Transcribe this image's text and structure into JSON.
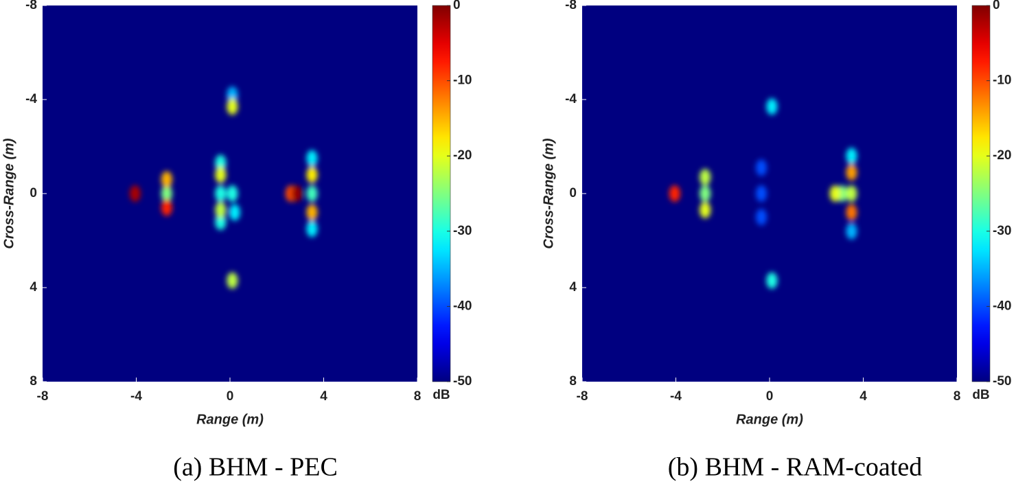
{
  "chart_data": [
    {
      "type": "heatmap",
      "caption": "(a) BHM - PEC",
      "xlabel": "Range (m)",
      "ylabel": "Cross-Range (m)",
      "xlim": [
        -8,
        8
      ],
      "xticks": [
        -8,
        -4,
        0,
        4,
        8
      ],
      "ylim": [
        8,
        -8
      ],
      "yticks": [
        -8,
        -4,
        0,
        4,
        8
      ],
      "clim": [
        -50,
        0
      ],
      "cticks": [
        0,
        -10,
        -20,
        -30,
        -40,
        -50
      ],
      "colorbar_label": "dB",
      "points": {
        "x": [
          -4.05,
          -2.7,
          -2.7,
          -2.7,
          -0.4,
          -0.4,
          -0.4,
          -0.4,
          -0.4,
          0.1,
          0.1,
          0.1,
          0.1,
          2.85,
          2.6,
          3.5,
          3.5,
          3.5,
          3.5,
          3.5,
          0.2
        ],
        "y": [
          0,
          -0.6,
          0.6,
          0,
          -0.8,
          0.7,
          0,
          -1.3,
          1.2,
          -3.7,
          3.7,
          0,
          -4.2,
          0,
          0,
          -0.8,
          0.8,
          0,
          -1.5,
          1.5,
          0.8
        ],
        "values": [
          -2,
          -15,
          -8,
          -25,
          -20,
          -22,
          -30,
          -30,
          -30,
          -20,
          -22,
          -30,
          -35,
          -1,
          -10,
          -18,
          -15,
          -28,
          -32,
          -32,
          -32
        ]
      }
    },
    {
      "type": "heatmap",
      "caption": "(b) BHM - RAM-coated",
      "xlabel": "Range (m)",
      "ylabel": "Cross-Range (m)",
      "xlim": [
        -8,
        8
      ],
      "xticks": [
        -8,
        -4,
        0,
        4,
        8
      ],
      "ylim": [
        8,
        -8
      ],
      "yticks": [
        -8,
        -4,
        0,
        4,
        8
      ],
      "clim": [
        -50,
        0
      ],
      "cticks": [
        0,
        -10,
        -20,
        -30,
        -40,
        -50
      ],
      "colorbar_label": "dB",
      "points": {
        "x": [
          -4.05,
          -2.75,
          -2.75,
          -2.75,
          -0.35,
          -0.35,
          -0.35,
          0.1,
          0.1,
          2.8,
          3.1,
          3.5,
          3.5,
          3.5,
          3.5,
          3.5
        ],
        "y": [
          0,
          -0.7,
          0,
          0.7,
          -1.1,
          0,
          1.0,
          -3.7,
          3.7,
          0,
          0,
          -0.9,
          0.8,
          0,
          -1.6,
          1.6
        ],
        "values": [
          -8,
          -22,
          -25,
          -20,
          -40,
          -40,
          -40,
          -32,
          -30,
          -20,
          -25,
          -14,
          -12,
          -22,
          -32,
          -35
        ]
      }
    }
  ]
}
